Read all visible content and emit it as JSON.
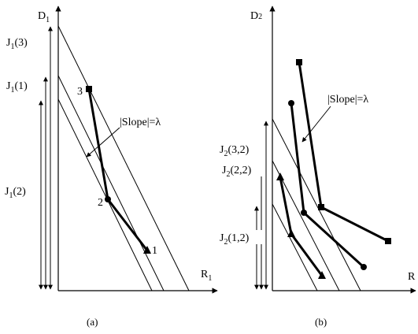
{
  "panel_a": {
    "axis_y": "D",
    "axis_y_sub": "1",
    "axis_x": "R",
    "axis_x_sub": "1",
    "j13": {
      "main": "J",
      "sub": "1",
      "rest": "(3)"
    },
    "j11": {
      "main": "J",
      "sub": "1",
      "rest": "(1)"
    },
    "j12": {
      "main": "J",
      "sub": "1",
      "rest": "(2)"
    },
    "slope": "|Slope|=λ",
    "point_3": "3",
    "point_2": "2",
    "point_1": "1",
    "caption": "(a)"
  },
  "panel_b": {
    "axis_y": "D",
    "axis_y_sub": "2",
    "axis_x": "R",
    "j232": {
      "main": "J",
      "sub": "2",
      "rest": "(3,2)"
    },
    "j222": {
      "main": "J",
      "sub": "2",
      "rest": "(2,2)"
    },
    "j212": {
      "main": "J",
      "sub": "2",
      "rest": "(1,2)"
    },
    "slope": "|Slope|=λ",
    "caption": "(b)"
  }
}
